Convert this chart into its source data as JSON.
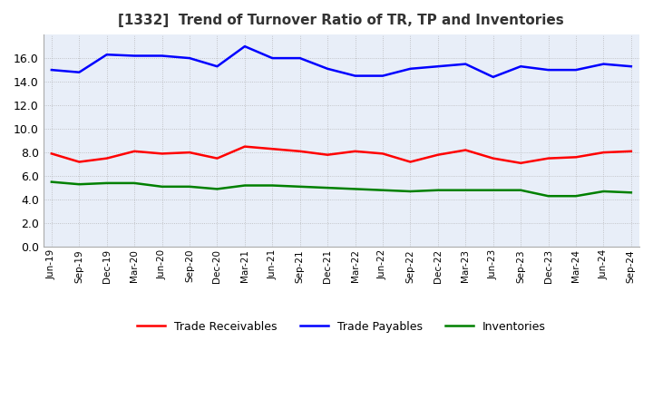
{
  "title": "[1332]  Trend of Turnover Ratio of TR, TP and Inventories",
  "x_labels": [
    "Jun-19",
    "Sep-19",
    "Dec-19",
    "Mar-20",
    "Jun-20",
    "Sep-20",
    "Dec-20",
    "Mar-21",
    "Jun-21",
    "Sep-21",
    "Dec-21",
    "Mar-22",
    "Jun-22",
    "Sep-22",
    "Dec-22",
    "Mar-23",
    "Jun-23",
    "Sep-23",
    "Dec-23",
    "Mar-24",
    "Jun-24",
    "Sep-24"
  ],
  "trade_receivables": [
    7.9,
    7.2,
    7.5,
    8.1,
    7.9,
    8.0,
    7.5,
    8.5,
    8.3,
    8.1,
    7.8,
    8.1,
    7.9,
    7.2,
    7.8,
    8.2,
    7.5,
    7.1,
    7.5,
    7.6,
    8.0,
    8.1
  ],
  "trade_payables": [
    15.0,
    14.8,
    16.3,
    16.2,
    16.2,
    16.0,
    15.3,
    17.0,
    16.0,
    16.0,
    15.1,
    14.5,
    14.5,
    15.1,
    15.3,
    15.5,
    14.4,
    15.3,
    15.0,
    15.0,
    15.5,
    15.3
  ],
  "inventories": [
    5.5,
    5.3,
    5.4,
    5.4,
    5.1,
    5.1,
    4.9,
    5.2,
    5.2,
    5.1,
    5.0,
    4.9,
    4.8,
    4.7,
    4.8,
    4.8,
    4.8,
    4.8,
    4.3,
    4.3,
    4.7,
    4.6
  ],
  "tr_color": "#ff0000",
  "tp_color": "#0000ff",
  "inv_color": "#008000",
  "ylim": [
    0,
    18.0
  ],
  "yticks": [
    0.0,
    2.0,
    4.0,
    6.0,
    8.0,
    10.0,
    12.0,
    14.0,
    16.0
  ],
  "background_color": "#ffffff",
  "grid_color": "#aaaaaa",
  "plot_bg_color": "#e8eef8",
  "legend_labels": [
    "Trade Receivables",
    "Trade Payables",
    "Inventories"
  ]
}
